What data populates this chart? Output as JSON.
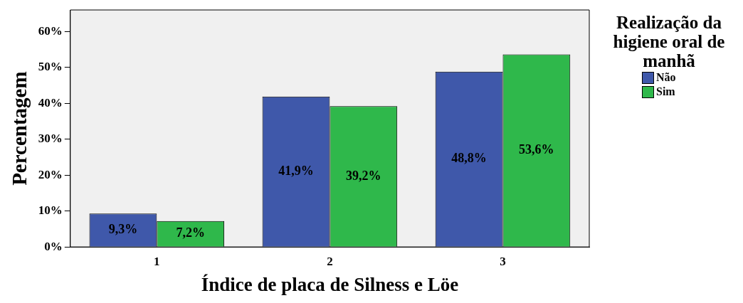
{
  "chart_data": {
    "type": "bar",
    "xlabel": "Índice de placa de Silness e Löe",
    "ylabel": "Percentagem",
    "legend_title": "Realização da higiene oral de manhã",
    "categories": [
      "1",
      "2",
      "3"
    ],
    "series": [
      {
        "name": "Não",
        "color": "#3f58aa",
        "values": [
          9.3,
          41.9,
          48.8
        ],
        "value_labels": [
          "9,3%",
          "41,9%",
          "48,8%"
        ]
      },
      {
        "name": "Sim",
        "color": "#2fb84b",
        "values": [
          7.2,
          39.2,
          53.6
        ],
        "value_labels": [
          "7,2%",
          "39,2%",
          "53,6%"
        ]
      }
    ],
    "ylim": [
      0,
      66
    ],
    "yticks": [
      {
        "value": 0,
        "label": "0%"
      },
      {
        "value": 10,
        "label": "10%"
      },
      {
        "value": 20,
        "label": "20%"
      },
      {
        "value": 30,
        "label": "30%"
      },
      {
        "value": 40,
        "label": "40%"
      },
      {
        "value": 50,
        "label": "50%"
      },
      {
        "value": 60,
        "label": "60%"
      }
    ],
    "grid": false,
    "legend": "right"
  }
}
